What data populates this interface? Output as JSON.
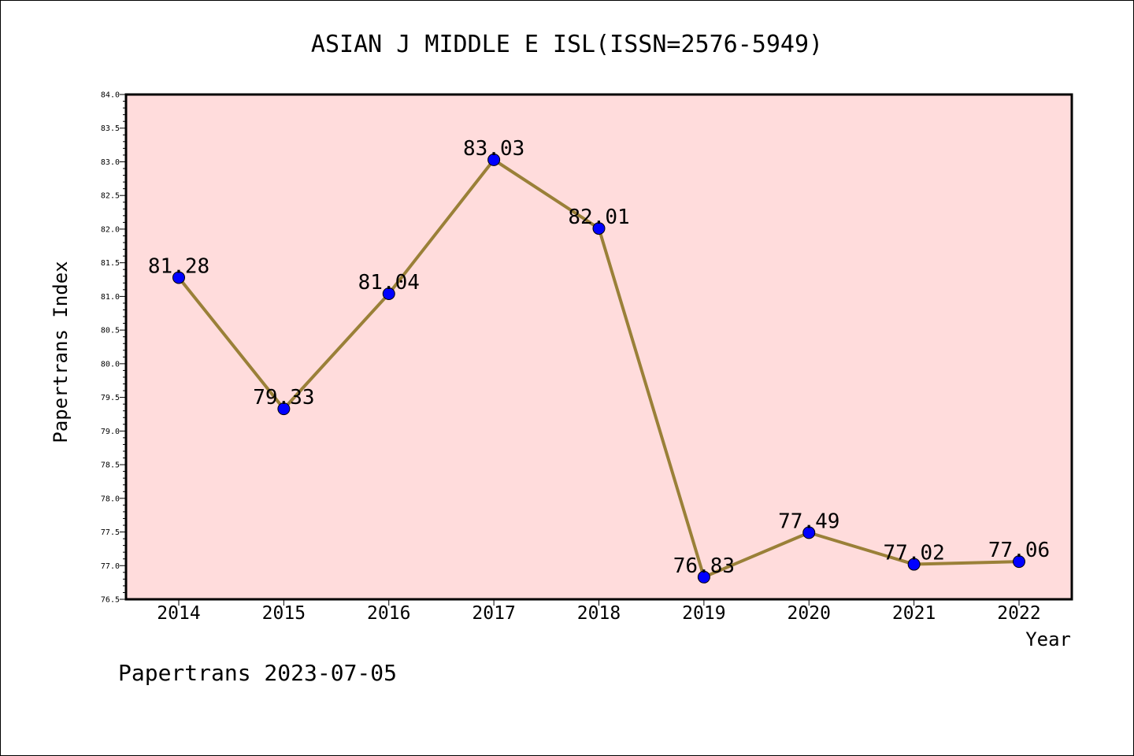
{
  "chart_data": {
    "type": "line",
    "title": "ASIAN J MIDDLE E ISL(ISSN=2576-5949)",
    "xlabel": "Year",
    "ylabel": "Papertrans Index",
    "categories": [
      "2014",
      "2015",
      "2016",
      "2017",
      "2018",
      "2019",
      "2020",
      "2021",
      "2022"
    ],
    "series": [
      {
        "values": [
          81.28,
          79.33,
          81.04,
          83.03,
          82.01,
          76.83,
          77.49,
          77.02,
          77.06
        ]
      }
    ],
    "data_labels": [
      "81.28",
      "79.33",
      "81.04",
      "83.03",
      "82.01",
      "76.83",
      "77.49",
      "77.02",
      "77.06"
    ],
    "ylim": [
      76.5,
      84.0
    ],
    "yticks": [
      "76.5",
      "77.0",
      "77.5",
      "78.0",
      "78.5",
      "79.0",
      "79.5",
      "80.0",
      "80.5",
      "81.0",
      "81.5",
      "82.0",
      "82.5",
      "83.0",
      "83.5",
      "84.0"
    ],
    "grid": false,
    "colors": {
      "plot_background": "#ffdcdc",
      "line": "#9a8038",
      "marker": "#0000ff"
    }
  },
  "footer": "Papertrans 2023-07-05"
}
